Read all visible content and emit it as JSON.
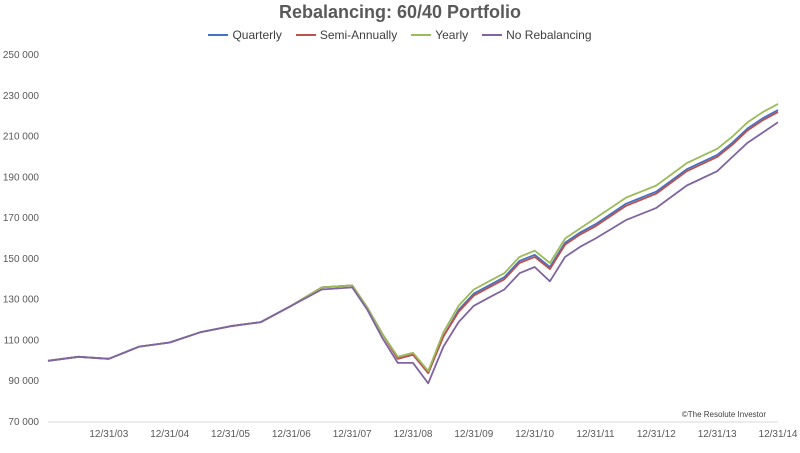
{
  "chart_data": {
    "type": "line",
    "title": "Rebalancing: 60/40 Portfolio",
    "xlabel": "",
    "ylabel": "",
    "ylim": [
      70000,
      250000
    ],
    "yticks": [
      70000,
      90000,
      110000,
      130000,
      150000,
      170000,
      190000,
      210000,
      230000,
      250000
    ],
    "ytick_labels": [
      "70 000",
      "90 000",
      "110 000",
      "130 000",
      "150 000",
      "170 000",
      "190 000",
      "210 000",
      "230 000",
      "250 000"
    ],
    "xtick_labels": [
      "12/31/03",
      "12/31/04",
      "12/31/05",
      "12/31/06",
      "12/31/07",
      "12/31/08",
      "12/31/09",
      "12/31/10",
      "12/31/11",
      "12/31/12",
      "12/31/13",
      "12/31/14"
    ],
    "legend_position": "top",
    "grid": false,
    "annotation": "©The Resolute Investor",
    "x": [
      2003.0,
      2003.5,
      2004.0,
      2004.5,
      2005.0,
      2005.5,
      2006.0,
      2006.5,
      2007.0,
      2007.5,
      2008.0,
      2008.25,
      2008.5,
      2008.75,
      2009.0,
      2009.25,
      2009.5,
      2009.75,
      2010.0,
      2010.25,
      2010.5,
      2010.75,
      2011.0,
      2011.25,
      2011.5,
      2011.75,
      2012.0,
      2012.5,
      2013.0,
      2013.5,
      2014.0,
      2014.25,
      2014.5,
      2014.75,
      2015.0
    ],
    "series": [
      {
        "name": "Quarterly",
        "color": "#4472C4",
        "values": [
          100000,
          102000,
          101000,
          107000,
          109000,
          114000,
          117000,
          119000,
          127000,
          136000,
          137000,
          126000,
          113000,
          101000,
          103000,
          94000,
          112000,
          125000,
          133000,
          137000,
          141000,
          149000,
          152000,
          146000,
          158000,
          163000,
          167000,
          177000,
          183000,
          194000,
          201000,
          207000,
          214000,
          219000,
          223000
        ]
      },
      {
        "name": "Semi-Annually",
        "color": "#C0504D",
        "values": [
          100000,
          102000,
          101000,
          107000,
          109000,
          114000,
          117000,
          119000,
          127000,
          136000,
          137000,
          126000,
          113000,
          101000,
          103000,
          94000,
          112000,
          124000,
          132000,
          136000,
          140000,
          148000,
          151000,
          145000,
          157000,
          162000,
          166000,
          176000,
          182000,
          193000,
          200000,
          206000,
          213000,
          218000,
          222000
        ]
      },
      {
        "name": "Yearly",
        "color": "#9BBB59",
        "values": [
          100000,
          102000,
          101000,
          107000,
          109000,
          114000,
          117000,
          119000,
          127000,
          136000,
          137000,
          126000,
          113000,
          102000,
          104000,
          95000,
          114000,
          127000,
          135000,
          139000,
          143000,
          151000,
          154000,
          148000,
          160000,
          165000,
          170000,
          180000,
          186000,
          197000,
          204000,
          210000,
          217000,
          222000,
          226000
        ]
      },
      {
        "name": "No Rebalancing",
        "color": "#8064A2",
        "values": [
          100000,
          102000,
          101000,
          107000,
          109000,
          114000,
          117000,
          119000,
          127000,
          135000,
          136000,
          125000,
          111000,
          99000,
          99000,
          89000,
          107000,
          119000,
          127000,
          131000,
          135000,
          143000,
          146000,
          139000,
          151000,
          156000,
          160000,
          169000,
          175000,
          186000,
          193000,
          200000,
          207000,
          212000,
          217000
        ]
      }
    ]
  }
}
